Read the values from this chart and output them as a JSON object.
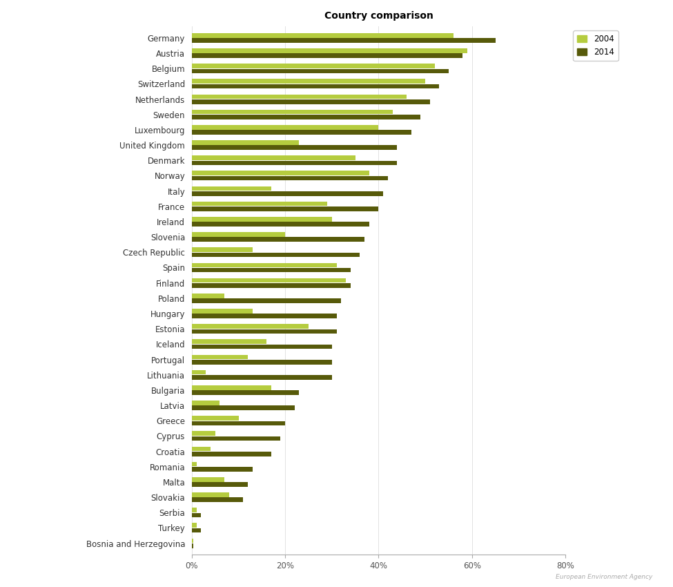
{
  "title": "Country comparison",
  "countries": [
    "Germany",
    "Austria",
    "Belgium",
    "Switzerland",
    "Netherlands",
    "Sweden",
    "Luxembourg",
    "United Kingdom",
    "Denmark",
    "Norway",
    "Italy",
    "France",
    "Ireland",
    "Slovenia",
    "Czech Republic",
    "Spain",
    "Finland",
    "Poland",
    "Hungary",
    "Estonia",
    "Iceland",
    "Portugal",
    "Lithuania",
    "Bulgaria",
    "Latvia",
    "Greece",
    "Cyprus",
    "Croatia",
    "Romania",
    "Malta",
    "Slovakia",
    "Serbia",
    "Turkey",
    "Bosnia and Herzegovina"
  ],
  "values_2004": [
    56,
    59,
    52,
    50,
    46,
    43,
    40,
    23,
    35,
    38,
    17,
    29,
    30,
    20,
    13,
    31,
    33,
    7,
    13,
    25,
    16,
    12,
    3,
    17,
    6,
    10,
    5,
    4,
    1,
    7,
    8,
    1,
    1,
    0.3
  ],
  "values_2014": [
    65,
    58,
    55,
    53,
    51,
    49,
    47,
    44,
    44,
    42,
    41,
    40,
    38,
    37,
    36,
    34,
    34,
    32,
    31,
    31,
    30,
    30,
    30,
    23,
    22,
    20,
    19,
    17,
    13,
    12,
    11,
    2,
    2,
    0.3
  ],
  "color_2004": "#b5cc3f",
  "color_2014": "#575a0a",
  "xlim": [
    0,
    80
  ],
  "xticks": [
    0,
    20,
    40,
    60,
    80
  ],
  "xticklabels": [
    "0%",
    "20%",
    "40%",
    "60%",
    "80%"
  ],
  "legend_labels": [
    "2004",
    "2014"
  ],
  "title_fontsize": 10,
  "label_fontsize": 8.5,
  "tick_fontsize": 8.5
}
